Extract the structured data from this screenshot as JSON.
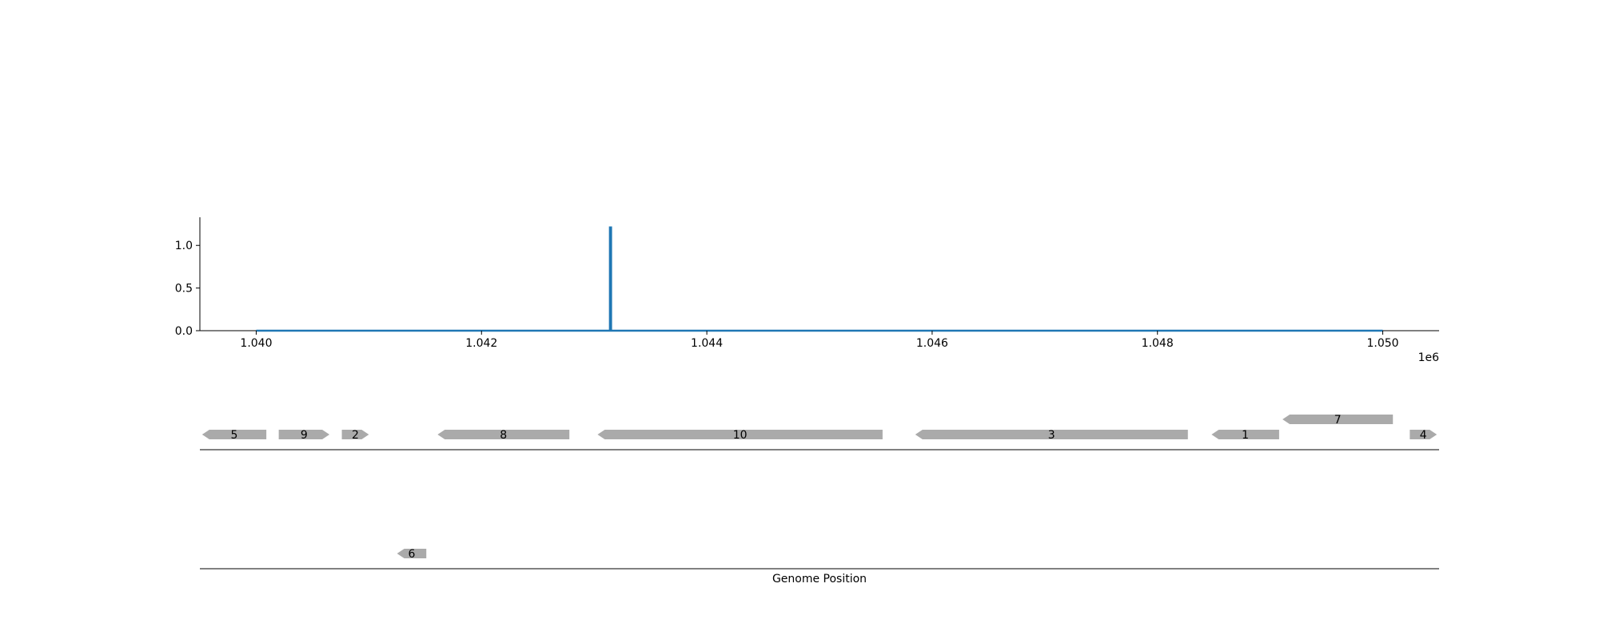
{
  "chart_data": [
    {
      "type": "line",
      "title": "",
      "xlabel": "",
      "ylabel": "",
      "x_offset_label": "1e6",
      "xlim": [
        1039500,
        1050500
      ],
      "ylim": [
        0,
        1.33
      ],
      "x_ticks": [
        {
          "value": 1040000,
          "label": "1.040"
        },
        {
          "value": 1042000,
          "label": "1.042"
        },
        {
          "value": 1044000,
          "label": "1.044"
        },
        {
          "value": 1046000,
          "label": "1.046"
        },
        {
          "value": 1048000,
          "label": "1.048"
        },
        {
          "value": 1050000,
          "label": "1.050"
        }
      ],
      "y_ticks": [
        {
          "value": 0,
          "label": "0.0"
        },
        {
          "value": 0.5,
          "label": "0.5"
        },
        {
          "value": 1,
          "label": "1.0"
        }
      ],
      "series": [
        {
          "color": "#1f77b4",
          "x": [
            1040000,
            1043140,
            1043140,
            1043150,
            1043150,
            1050000
          ],
          "y": [
            0,
            0,
            1.21,
            1.21,
            0,
            0
          ]
        }
      ]
    },
    {
      "type": "gene-track",
      "xlabel": "Genome Position",
      "xlim": [
        1039500,
        1050500
      ],
      "genes": [
        {
          "label": "5",
          "start": 1039520,
          "end": 1040090,
          "strand": -1,
          "track": 0
        },
        {
          "label": "9",
          "start": 1040200,
          "end": 1040650,
          "strand": 1,
          "track": 0
        },
        {
          "label": "2",
          "start": 1040760,
          "end": 1041000,
          "strand": 1,
          "track": 0
        },
        {
          "label": "8",
          "start": 1041610,
          "end": 1042780,
          "strand": -1,
          "track": 0
        },
        {
          "label": "10",
          "start": 1043030,
          "end": 1045560,
          "strand": -1,
          "track": 0
        },
        {
          "label": "3",
          "start": 1045850,
          "end": 1048270,
          "strand": -1,
          "track": 0
        },
        {
          "label": "1",
          "start": 1048480,
          "end": 1049080,
          "strand": -1,
          "track": 0
        },
        {
          "label": "7",
          "start": 1049110,
          "end": 1050090,
          "strand": -1,
          "track": 1
        },
        {
          "label": "4",
          "start": 1050240,
          "end": 1050480,
          "strand": 1,
          "track": 0
        },
        {
          "label": "6",
          "start": 1041250,
          "end": 1041510,
          "strand": -1,
          "track": -1
        }
      ]
    }
  ],
  "colors": {
    "line": "#1f77b4",
    "gene": "#aaaaaa",
    "axis": "#000000"
  }
}
